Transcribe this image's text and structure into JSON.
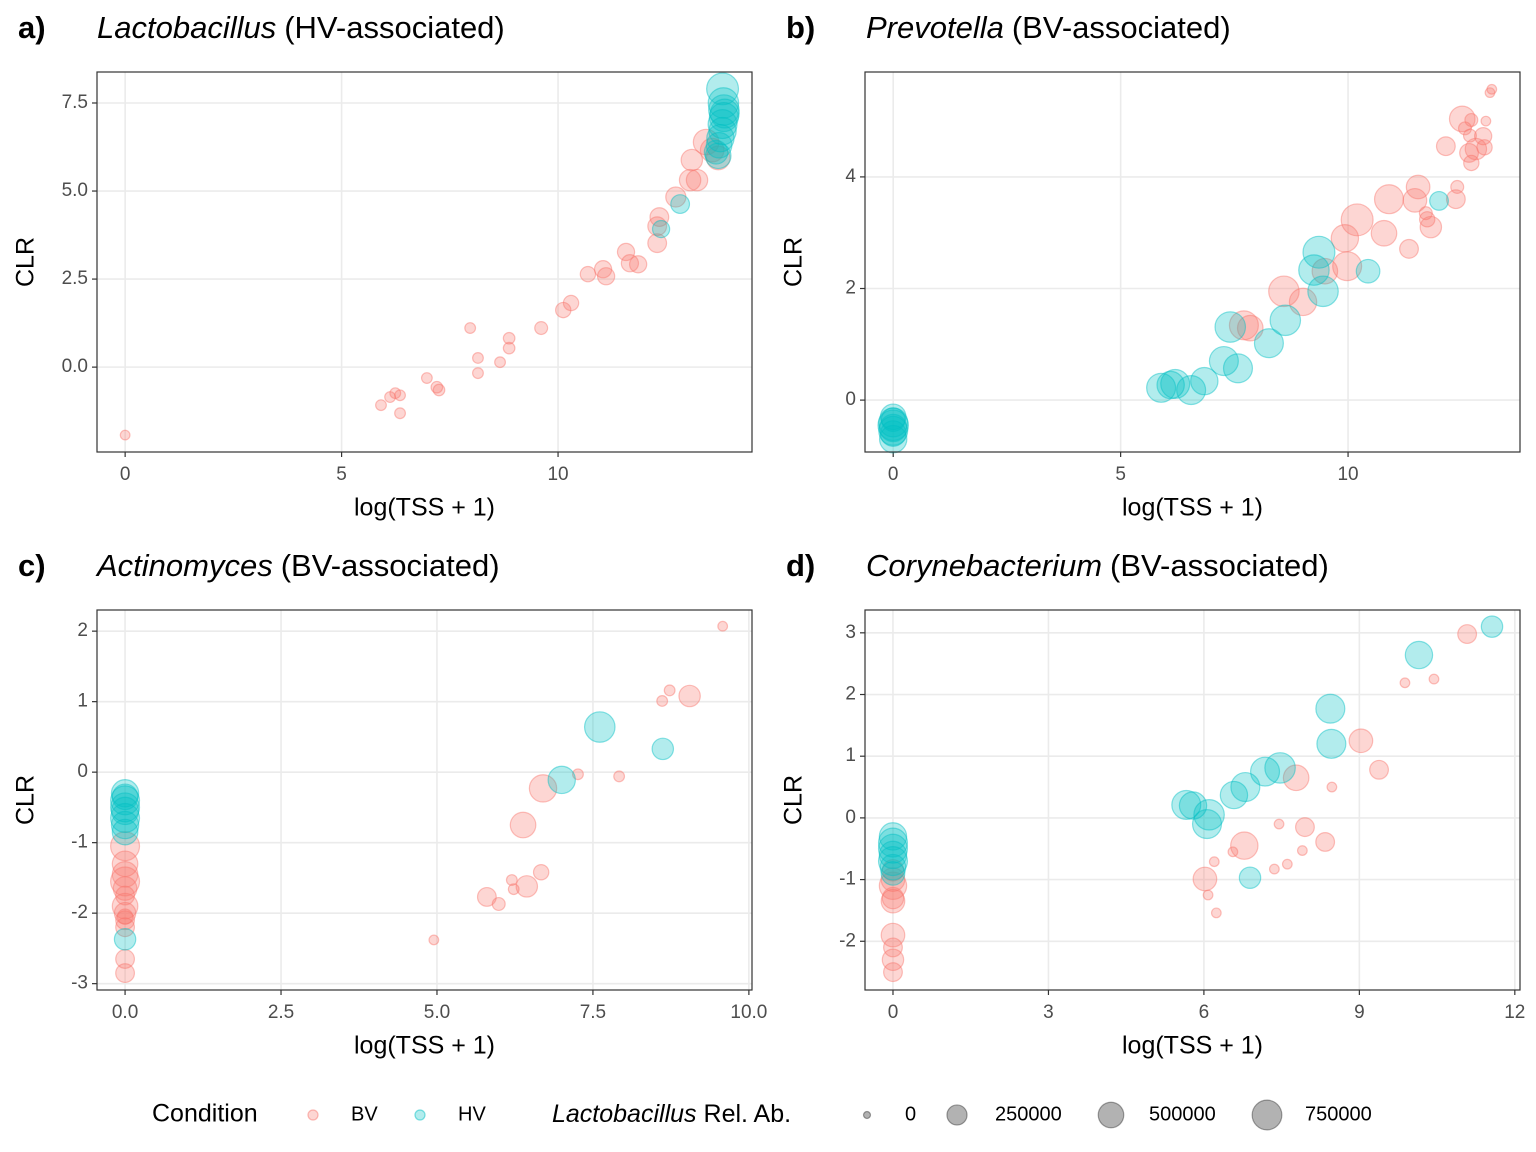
{
  "chart_data": [
    {
      "type": "scatter",
      "label": "a)",
      "title_italic": "Lactobacillus",
      "title": "(HV-associated)",
      "x_label": "log(TSS + 1)",
      "y_label": "CLR",
      "xlim": [
        -0.65,
        14.48
      ],
      "ylim": [
        -2.41,
        8.38
      ],
      "xticks": [
        0,
        5,
        10
      ],
      "yticks": [
        {
          "value": 0,
          "label": "0.0"
        },
        2.5,
        {
          "value": 5,
          "label": "5.0"
        },
        7.5
      ],
      "grid": true,
      "series": [
        {
          "name": "BV",
          "color": "#F8766D",
          "x": [
            0,
            5.91,
            6.12,
            6.24,
            6.35,
            6.35,
            6.97,
            7.2,
            7.25,
            7.97,
            8.15,
            8.15,
            8.66,
            8.87,
            8.87,
            9.61,
            10.12,
            10.3,
            10.69,
            11.04,
            11.11,
            11.57,
            11.66,
            11.85,
            12.29,
            12.29,
            12.34,
            12.72,
            13.05,
            13.21,
            13.09,
            13.42,
            13.7,
            13.56
          ],
          "values": [
            -1.93,
            -1.08,
            -0.85,
            -0.74,
            -0.8,
            -1.31,
            -0.31,
            -0.57,
            -0.65,
            1.11,
            0.26,
            -0.17,
            0.14,
            0.82,
            0.54,
            1.11,
            1.62,
            1.82,
            2.64,
            2.78,
            2.58,
            3.27,
            2.95,
            2.92,
            3.52,
            4.0,
            4.26,
            4.83,
            5.31,
            5.31,
            5.88,
            6.39,
            5.94,
            6.16
          ],
          "sizes": [
            10000,
            20000,
            20000,
            20000,
            20000,
            20000,
            20000,
            30000,
            30000,
            20000,
            20000,
            20000,
            20000,
            30000,
            30000,
            50000,
            100000,
            100000,
            100000,
            150000,
            150000,
            150000,
            150000,
            150000,
            200000,
            200000,
            200000,
            250000,
            300000,
            300000,
            300000,
            500000,
            400000,
            400000
          ]
        },
        {
          "name": "HV",
          "color": "#00BFC4",
          "x": [
            12.82,
            12.38,
            13.8,
            13.82,
            13.83,
            13.83,
            13.8,
            13.8,
            13.75,
            13.72,
            13.7,
            13.65,
            13.85
          ],
          "values": [
            4.63,
            3.92,
            7.9,
            7.5,
            7.3,
            7.1,
            6.9,
            6.7,
            6.5,
            6.3,
            6.0,
            6.1,
            7.2
          ],
          "sizes": [
            200000,
            150000,
            900000,
            800000,
            800000,
            700000,
            700000,
            600000,
            600000,
            500000,
            500000,
            400000,
            700000
          ]
        }
      ]
    },
    {
      "type": "scatter",
      "label": "b)",
      "title_italic": "Prevotella",
      "title": "(BV-associated)",
      "x_label": "log(TSS + 1)",
      "y_label": "CLR",
      "xlim": [
        -0.62,
        13.78
      ],
      "ylim": [
        -0.93,
        5.88
      ],
      "xticks": [
        0,
        5,
        10
      ],
      "yticks": [
        0,
        2,
        4
      ],
      "grid": true,
      "series": [
        {
          "name": "BV",
          "color": "#F8766D",
          "x": [
            7.71,
            7.85,
            8.59,
            9.01,
            9.49,
            9.98,
            9.93,
            10.2,
            10.79,
            10.9,
            11.34,
            11.47,
            11.54,
            11.82,
            11.74,
            11.71,
            12.37,
            12.4,
            12.15,
            12.51,
            12.57,
            12.81,
            12.66,
            12.97,
            12.71,
            13.0,
            13.03,
            13.16,
            13.12,
            12.68,
            12.71
          ],
          "values": [
            1.34,
            1.29,
            1.95,
            1.76,
            2.31,
            2.4,
            2.9,
            3.23,
            2.99,
            3.6,
            2.71,
            3.58,
            3.82,
            3.1,
            3.24,
            3.35,
            3.6,
            3.82,
            4.55,
            5.04,
            4.87,
            4.5,
            4.43,
            4.73,
            4.25,
            4.53,
            5.0,
            5.57,
            5.51,
            4.74,
            5.02
          ],
          "sizes": [
            700000,
            500000,
            800000,
            600000,
            500000,
            700000,
            600000,
            900000,
            500000,
            700000,
            200000,
            400000,
            400000,
            300000,
            100000,
            50000,
            200000,
            50000,
            200000,
            500000,
            50000,
            300000,
            200000,
            150000,
            100000,
            100000,
            10000,
            10000,
            10000,
            50000,
            50000
          ]
        },
        {
          "name": "HV",
          "color": "#00BFC4",
          "x": [
            0,
            0,
            0,
            0,
            0,
            0,
            0,
            0,
            5.89,
            6.2,
            6.1,
            6.55,
            6.84,
            7.41,
            7.27,
            7.58,
            8.26,
            8.62,
            9.36,
            9.25,
            9.45,
            10.44,
            12.0
          ],
          "values": [
            -0.3,
            -0.4,
            -0.45,
            -0.5,
            -0.55,
            -0.6,
            -0.7,
            -0.35,
            0.22,
            0.29,
            0.27,
            0.18,
            0.34,
            1.31,
            0.7,
            0.57,
            1.02,
            1.43,
            2.65,
            2.33,
            1.95,
            2.31,
            3.57
          ],
          "sizes": [
            500000,
            700000,
            800000,
            600000,
            700000,
            500000,
            600000,
            400000,
            700000,
            700000,
            600000,
            700000,
            600000,
            800000,
            700000,
            700000,
            700000,
            800000,
            900000,
            800000,
            800000,
            400000,
            200000
          ]
        }
      ]
    },
    {
      "type": "scatter",
      "label": "c)",
      "title_italic": "Actinomyces",
      "title": "(BV-associated)",
      "x_label": "log(TSS + 1)",
      "y_label": "CLR",
      "xlim": [
        -0.45,
        10.05
      ],
      "ylim": [
        -3.09,
        2.3
      ],
      "xticks": [
        {
          "value": 0,
          "label": "0.0"
        },
        2.5,
        {
          "value": 5,
          "label": "5.0"
        },
        7.5,
        {
          "value": 10,
          "label": "10.0"
        }
      ],
      "yticks": [
        -3,
        -2,
        -1,
        0,
        1,
        2
      ],
      "grid": true,
      "series": [
        {
          "name": "BV",
          "color": "#F8766D",
          "x": [
            0,
            0,
            0,
            0,
            0,
            0,
            0,
            0,
            0,
            0,
            0,
            0,
            0,
            4.95,
            5.8,
            5.99,
            6.2,
            6.23,
            6.44,
            6.67,
            6.38,
            6.7,
            7.26,
            7.92,
            8.61,
            8.73,
            9.05,
            9.58
          ],
          "values": [
            -1.05,
            -1.3,
            -1.45,
            -1.55,
            -1.65,
            -1.9,
            -2.0,
            -2.1,
            -2.2,
            -2.65,
            -2.85,
            -1.75,
            -2.05,
            -2.38,
            -1.77,
            -1.87,
            -1.53,
            -1.66,
            -1.62,
            -1.42,
            -0.75,
            -0.23,
            -0.03,
            -0.06,
            1.01,
            1.16,
            1.08,
            2.07
          ],
          "sizes": [
            700000,
            500000,
            500000,
            700000,
            400000,
            500000,
            300000,
            200000,
            200000,
            200000,
            200000,
            200000,
            100000,
            10000,
            200000,
            50000,
            20000,
            20000,
            300000,
            100000,
            500000,
            600000,
            20000,
            20000,
            20000,
            20000,
            300000,
            10000
          ]
        },
        {
          "name": "HV",
          "color": "#00BFC4",
          "x": [
            0,
            0,
            0,
            0,
            0,
            0,
            0,
            0,
            0,
            7.0,
            7.61,
            8.62
          ],
          "values": [
            -0.3,
            -0.4,
            -0.5,
            -0.55,
            -0.65,
            -0.75,
            -0.85,
            -0.35,
            -2.37,
            -0.11,
            0.64,
            0.33
          ],
          "sizes": [
            600000,
            700000,
            700000,
            600000,
            700000,
            600000,
            500000,
            500000,
            300000,
            600000,
            800000,
            300000
          ]
        }
      ]
    },
    {
      "type": "scatter",
      "label": "d)",
      "title_italic": "Corynebacterium",
      "title": "(BV-associated)",
      "x_label": "log(TSS + 1)",
      "y_label": "CLR",
      "xlim": [
        -0.54,
        12.1
      ],
      "ylim": [
        -2.79,
        3.37
      ],
      "xticks": [
        0,
        3,
        6,
        9,
        12
      ],
      "yticks": [
        -2,
        -1,
        0,
        1,
        2,
        3
      ],
      "grid": true,
      "series": [
        {
          "name": "BV",
          "color": "#F8766D",
          "x": [
            0,
            0,
            0,
            0,
            0,
            0,
            0,
            0,
            0,
            6.02,
            6.08,
            6.2,
            6.24,
            6.56,
            6.78,
            7.78,
            7.61,
            7.36,
            7.45,
            7.95,
            7.9,
            8.34,
            8.47,
            9.03,
            9.38,
            9.88,
            10.44,
            11.08
          ],
          "values": [
            -1.1,
            -1.35,
            -1.3,
            -1.9,
            -2.1,
            -2.3,
            -2.5,
            -1.0,
            -0.85,
            -0.99,
            -1.25,
            -0.71,
            -1.54,
            -0.55,
            -0.45,
            0.65,
            -0.75,
            -0.83,
            -0.1,
            -0.15,
            -0.53,
            -0.39,
            0.5,
            1.25,
            0.78,
            2.19,
            2.25,
            2.98
          ],
          "sizes": [
            600000,
            400000,
            300000,
            400000,
            200000,
            300000,
            200000,
            400000,
            300000,
            400000,
            10000,
            10000,
            10000,
            10000,
            600000,
            500000,
            10000,
            10000,
            10000,
            200000,
            10000,
            200000,
            10000,
            400000,
            200000,
            10000,
            10000,
            200000
          ]
        },
        {
          "name": "HV",
          "color": "#00BFC4",
          "x": [
            0,
            0,
            0,
            0,
            0,
            0,
            0,
            5.66,
            5.79,
            6.1,
            6.06,
            6.58,
            6.8,
            7.18,
            7.47,
            8.44,
            8.46,
            6.89,
            10.15,
            11.56
          ],
          "values": [
            -0.3,
            -0.4,
            -0.5,
            -0.6,
            -0.7,
            -0.8,
            -0.9,
            0.21,
            0.2,
            0.05,
            -0.1,
            0.37,
            0.5,
            0.75,
            0.81,
            1.77,
            1.2,
            -0.97,
            2.64,
            3.1
          ],
          "sizes": [
            600000,
            700000,
            700000,
            600000,
            700000,
            500000,
            400000,
            700000,
            600000,
            800000,
            700000,
            600000,
            700000,
            700000,
            800000,
            700000,
            700000,
            300000,
            600000,
            300000
          ]
        }
      ]
    }
  ],
  "legend": {
    "color_title": "Condition",
    "size_title_italic": "Lactobacillus",
    "size_title": "Rel. Ab.",
    "sizes": [
      0,
      250000,
      500000,
      750000
    ],
    "position": "bottom"
  }
}
